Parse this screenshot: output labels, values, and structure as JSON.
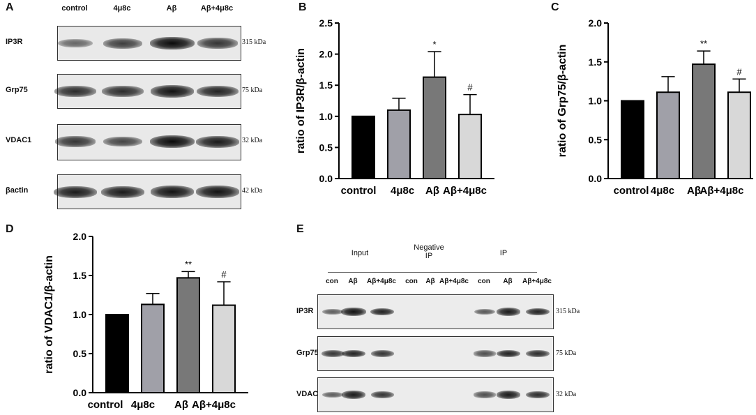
{
  "panels": {
    "A": {
      "letter": "A",
      "lanes": [
        "control",
        "4μ8c",
        "Aβ",
        "Aβ+4μ8c"
      ],
      "rows": [
        {
          "name": "IP3R",
          "size": "315 kDa",
          "intensity": [
            0.45,
            0.7,
            1.0,
            0.75
          ]
        },
        {
          "name": "Grp75",
          "size": "75 kDa",
          "intensity": [
            0.8,
            0.8,
            0.95,
            0.85
          ]
        },
        {
          "name": "VDAC1",
          "size": "32 kDa",
          "intensity": [
            0.75,
            0.65,
            1.0,
            0.9
          ]
        },
        {
          "name": "βactin",
          "size": "42 kDa",
          "intensity": [
            0.9,
            0.9,
            0.95,
            0.95
          ]
        }
      ]
    },
    "E": {
      "letter": "E",
      "groups": [
        "Input",
        "Negative\nIP",
        "IP"
      ],
      "lanes": [
        "con",
        "Aβ",
        "Aβ+4μ8c",
        "con",
        "Aβ",
        "Aβ+4μ8c",
        "con",
        "Aβ",
        "Aβ+4μ8c"
      ],
      "rows": [
        {
          "name": "IP3R",
          "size": "315 kDa",
          "intensity": [
            0.5,
            0.95,
            0.85,
            0,
            0,
            0,
            0.55,
            0.9,
            0.85
          ]
        },
        {
          "name": "Grp75",
          "size": "75 kDa",
          "intensity": [
            0.75,
            0.85,
            0.75,
            0,
            0,
            0,
            0.6,
            0.85,
            0.8
          ]
        },
        {
          "name": "VDAC1",
          "size": "32 kDa",
          "intensity": [
            0.5,
            0.9,
            0.75,
            0,
            0,
            0,
            0.6,
            0.9,
            0.8
          ]
        }
      ]
    }
  },
  "chart_data": [
    {
      "letter": "B",
      "type": "bar",
      "categories": [
        "control",
        "4μ8c",
        "Aβ",
        "Aβ+4μ8c"
      ],
      "values": [
        1.0,
        1.1,
        1.63,
        1.03
      ],
      "errors": [
        0,
        0.19,
        0.41,
        0.32
      ],
      "annotations": [
        "",
        "",
        "*",
        "#"
      ],
      "ylabel": "ratio of IP3R/β-actin",
      "ylim": [
        0,
        2.5
      ],
      "yticks": [
        "0.0",
        "0.5",
        "1.0",
        "1.5",
        "2.0",
        "2.5"
      ],
      "colors": [
        "#000000",
        "#a0a0a8",
        "#787878",
        "#d8d8d8"
      ]
    },
    {
      "letter": "C",
      "type": "bar",
      "categories": [
        "control",
        "4μ8c",
        "Aβ",
        "Aβ+4μ8c"
      ],
      "values": [
        1.0,
        1.11,
        1.47,
        1.11
      ],
      "errors": [
        0,
        0.2,
        0.17,
        0.17
      ],
      "annotations": [
        "",
        "",
        "**",
        "#"
      ],
      "ylabel": "ratio of Grp75/β-actin",
      "ylim": [
        0,
        2.0
      ],
      "yticks": [
        "0.0",
        "0.5",
        "1.0",
        "1.5",
        "2.0"
      ],
      "colors": [
        "#000000",
        "#a0a0a8",
        "#787878",
        "#d8d8d8"
      ]
    },
    {
      "letter": "D",
      "type": "bar",
      "categories": [
        "control",
        "4μ8c",
        "Aβ",
        "Aβ+4μ8c"
      ],
      "values": [
        1.0,
        1.13,
        1.47,
        1.12
      ],
      "errors": [
        0,
        0.14,
        0.08,
        0.3
      ],
      "annotations": [
        "",
        "",
        "**",
        "#"
      ],
      "ylabel": "ratio of VDAC1/β-actin",
      "ylim": [
        0,
        2.0
      ],
      "yticks": [
        "0.0",
        "0.5",
        "1.0",
        "1.5",
        "2.0"
      ],
      "colors": [
        "#000000",
        "#a0a0a8",
        "#787878",
        "#d8d8d8"
      ]
    }
  ]
}
